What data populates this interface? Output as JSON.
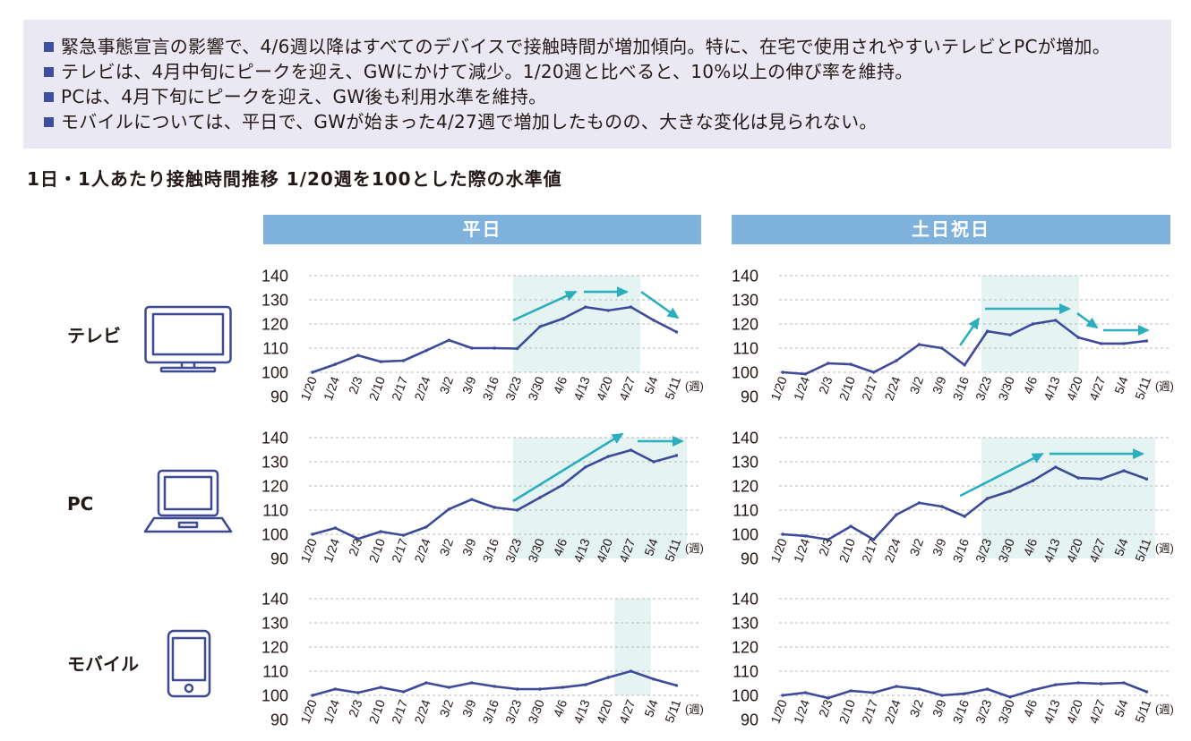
{
  "summary": {
    "bullets": [
      "緊急事態宣言の影響で、4/6週以降はすべてのデバイスで接触時間が増加傾向。特に、在宅で使用されやすいテレビとPCが増加。",
      "テレビは、4月中旬にピークを迎え、GWにかけて減少。1/20週と比べると、10%以上の伸び率を維持。",
      "PCは、4月下旬にピークを迎え、GW後も利用水準を維持。",
      "モバイルについては、平日で、GWが始まった4/27週で増加したものの、大きな変化は見られない。"
    ]
  },
  "heading": "1日・1人あたり接触時間推移 1/20週を100とした際の水準値",
  "columns": [
    "平日",
    "土日祝日"
  ],
  "rows": [
    {
      "label": "テレビ",
      "icon": "tv-icon"
    },
    {
      "label": "PC",
      "icon": "laptop-icon"
    },
    {
      "label": "モバイル",
      "icon": "smartphone-icon"
    }
  ],
  "colors": {
    "summary_background": "#e9e8f3",
    "bullet": "#3f4f9f",
    "header": "#7fb1dd",
    "line": "#3d4a9b",
    "arrow": "#2bafbf",
    "highlight": "#e5f3f2",
    "icon": "#3c4b91",
    "grid": "#b9b9b9"
  },
  "chart_data": [
    {
      "type": "line",
      "categories": [
        "1/20",
        "1/24",
        "2/3",
        "2/10",
        "2/17",
        "2/24",
        "3/2",
        "3/9",
        "3/16",
        "3/23",
        "3/30",
        "4/6",
        "4/13",
        "4/20",
        "4/27",
        "5/4",
        "5/11"
      ],
      "series": [
        {
          "values": [
            100,
            103.3,
            107,
            104.4,
            104.8,
            109,
            113.3,
            110,
            110,
            109.8,
            118.9,
            122.2,
            127,
            125.6,
            127,
            121.5,
            116.7
          ]
        }
      ],
      "ylim": [
        90,
        140
      ],
      "yticks": [
        90,
        100,
        110,
        120,
        130,
        140
      ],
      "xunit": "(週)",
      "grid": true
    },
    {
      "type": "line",
      "categories": [
        "1/20",
        "1/24",
        "2/3",
        "2/10",
        "2/17",
        "2/24",
        "3/2",
        "3/9",
        "3/16",
        "3/23",
        "3/30",
        "4/6",
        "4/13",
        "4/20",
        "4/27",
        "5/4",
        "5/11"
      ],
      "series": [
        {
          "values": [
            100,
            99.3,
            103.7,
            103.3,
            100,
            104.8,
            111.5,
            110,
            103,
            117,
            115.5,
            120,
            121.5,
            114.4,
            111.9,
            111.9,
            113
          ]
        }
      ],
      "ylim": [
        90,
        140
      ],
      "yticks": [
        90,
        100,
        110,
        120,
        130,
        140
      ],
      "xunit": "(週)",
      "grid": true
    },
    {
      "type": "line",
      "categories": [
        "1/20",
        "1/24",
        "2/3",
        "2/10",
        "2/17",
        "2/24",
        "3/2",
        "3/9",
        "3/16",
        "3/23",
        "3/30",
        "4/6",
        "4/13",
        "4/20",
        "4/27",
        "5/4",
        "5/11"
      ],
      "series": [
        {
          "values": [
            100,
            102.6,
            98.1,
            101.1,
            99.6,
            103,
            110.4,
            114.4,
            111.1,
            110,
            115.2,
            120.4,
            127.8,
            132.2,
            134.8,
            130,
            132.6
          ]
        }
      ],
      "ylim": [
        90,
        140
      ],
      "yticks": [
        90,
        100,
        110,
        120,
        130,
        140
      ],
      "xunit": "(週)",
      "grid": true
    },
    {
      "type": "line",
      "categories": [
        "1/20",
        "1/24",
        "2/3",
        "2/10",
        "2/17",
        "2/24",
        "3/2",
        "3/9",
        "3/16",
        "3/23",
        "3/30",
        "4/6",
        "4/13",
        "4/20",
        "4/27",
        "5/4",
        "5/11"
      ],
      "series": [
        {
          "values": [
            100,
            99.3,
            97.8,
            103.3,
            97.8,
            108.1,
            113,
            111.5,
            107.4,
            114.8,
            117.8,
            122.2,
            127.8,
            123.3,
            122.9,
            126.3,
            122.9
          ]
        }
      ],
      "ylim": [
        90,
        140
      ],
      "yticks": [
        90,
        100,
        110,
        120,
        130,
        140
      ],
      "xunit": "(週)",
      "grid": true
    },
    {
      "type": "line",
      "categories": [
        "1/20",
        "1/24",
        "2/3",
        "2/10",
        "2/17",
        "2/24",
        "3/2",
        "3/9",
        "3/16",
        "3/23",
        "3/30",
        "4/6",
        "4/13",
        "4/20",
        "4/27",
        "5/4",
        "5/11"
      ],
      "series": [
        {
          "values": [
            100,
            102.6,
            101.1,
            103.3,
            101.5,
            105.2,
            103.3,
            105.2,
            103.7,
            102.6,
            102.6,
            103.3,
            104.4,
            107.4,
            110,
            106.7,
            104.1
          ]
        }
      ],
      "ylim": [
        90,
        140
      ],
      "yticks": [
        90,
        100,
        110,
        120,
        130,
        140
      ],
      "xunit": "(週)",
      "grid": true
    },
    {
      "type": "line",
      "categories": [
        "1/20",
        "1/24",
        "2/3",
        "2/10",
        "2/17",
        "2/24",
        "3/2",
        "3/9",
        "3/16",
        "3/23",
        "3/30",
        "4/6",
        "4/13",
        "4/20",
        "4/27",
        "5/4",
        "5/11"
      ],
      "series": [
        {
          "values": [
            100,
            101.1,
            98.9,
            101.9,
            101.1,
            103.7,
            102.6,
            100,
            100.7,
            102.6,
            99.3,
            102.2,
            104.4,
            105.2,
            104.8,
            105.2,
            101.5
          ]
        }
      ],
      "ylim": [
        90,
        140
      ],
      "yticks": [
        90,
        100,
        110,
        120,
        130,
        140
      ],
      "xunit": "(週)",
      "grid": true
    }
  ]
}
